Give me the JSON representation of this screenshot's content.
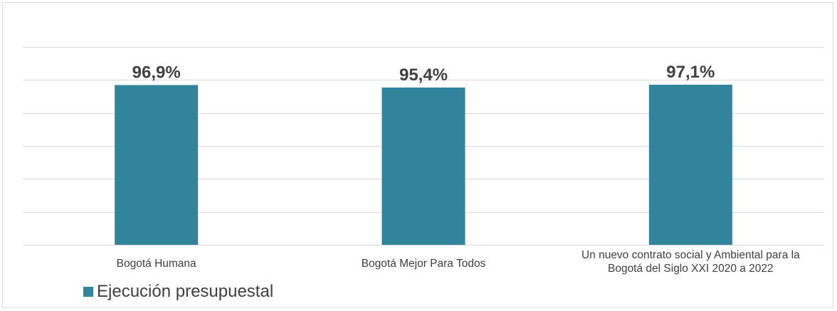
{
  "chart_data": {
    "type": "bar",
    "categories": [
      "Bogotá Humana",
      "Bogotá Mejor Para Todos",
      "Un nuevo contrato social y Ambiental para la Bogotá del Siglo XXI 2020 a 2022"
    ],
    "series": [
      {
        "name": "Ejecución presupuestal",
        "values": [
          96.9,
          95.4,
          97.1
        ]
      }
    ],
    "data_labels": [
      "96,9%",
      "95,4%",
      "97,1%"
    ],
    "ylim": [
      0,
      120
    ],
    "grid": true,
    "legend": "bottom-left",
    "color": "#31849b"
  }
}
